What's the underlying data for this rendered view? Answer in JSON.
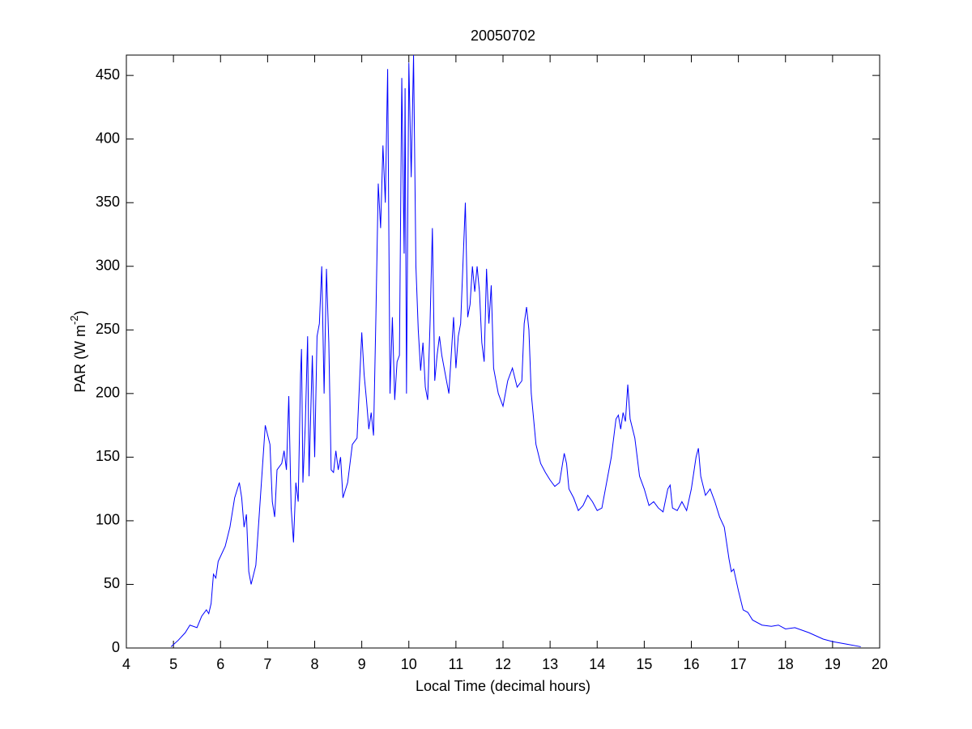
{
  "chart_data": {
    "type": "line",
    "title": "20050702",
    "xlabel": "Local Time (decimal hours)",
    "ylabel": [
      "PAR (W m",
      "-2",
      ")"
    ],
    "xlim": [
      4,
      20
    ],
    "xticks": [
      4,
      5,
      6,
      7,
      8,
      9,
      10,
      11,
      12,
      13,
      14,
      15,
      16,
      17,
      18,
      19,
      20
    ],
    "ylim": [
      0,
      466
    ],
    "yticks": [
      0,
      50,
      100,
      150,
      200,
      250,
      300,
      350,
      400,
      450
    ],
    "grid": false,
    "series": [
      {
        "color": "#0000ff",
        "x": [
          4.95,
          5.1,
          5.25,
          5.35,
          5.5,
          5.6,
          5.7,
          5.75,
          5.8,
          5.85,
          5.9,
          5.95,
          6.1,
          6.2,
          6.3,
          6.4,
          6.45,
          6.5,
          6.55,
          6.6,
          6.65,
          6.75,
          6.85,
          6.95,
          7.05,
          7.1,
          7.15,
          7.2,
          7.3,
          7.35,
          7.4,
          7.45,
          7.5,
          7.55,
          7.6,
          7.65,
          7.7,
          7.72,
          7.75,
          7.8,
          7.85,
          7.88,
          7.95,
          8.0,
          8.05,
          8.1,
          8.15,
          8.2,
          8.25,
          8.3,
          8.35,
          8.4,
          8.45,
          8.5,
          8.55,
          8.6,
          8.7,
          8.8,
          8.9,
          9.0,
          9.05,
          9.1,
          9.15,
          9.2,
          9.25,
          9.3,
          9.35,
          9.4,
          9.45,
          9.5,
          9.55,
          9.6,
          9.65,
          9.7,
          9.75,
          9.8,
          9.85,
          9.9,
          9.92,
          9.95,
          10.0,
          10.05,
          10.1,
          10.15,
          10.2,
          10.25,
          10.3,
          10.35,
          10.4,
          10.45,
          10.5,
          10.55,
          10.6,
          10.65,
          10.7,
          10.8,
          10.85,
          10.95,
          11.0,
          11.05,
          11.1,
          11.2,
          11.25,
          11.3,
          11.35,
          11.4,
          11.45,
          11.5,
          11.55,
          11.6,
          11.65,
          11.7,
          11.75,
          11.8,
          11.9,
          12.0,
          12.1,
          12.2,
          12.3,
          12.4,
          12.45,
          12.5,
          12.55,
          12.6,
          12.7,
          12.8,
          12.9,
          13.0,
          13.1,
          13.2,
          13.3,
          13.35,
          13.4,
          13.5,
          13.6,
          13.7,
          13.8,
          13.9,
          14.0,
          14.1,
          14.2,
          14.3,
          14.4,
          14.45,
          14.5,
          14.55,
          14.6,
          14.65,
          14.7,
          14.8,
          14.9,
          15.0,
          15.1,
          15.2,
          15.3,
          15.4,
          15.5,
          15.55,
          15.6,
          15.7,
          15.8,
          15.9,
          16.0,
          16.1,
          16.15,
          16.2,
          16.3,
          16.4,
          16.5,
          16.6,
          16.7,
          16.8,
          16.85,
          16.9,
          17.0,
          17.1,
          17.2,
          17.3,
          17.5,
          17.7,
          17.85,
          18.0,
          18.2,
          18.5,
          18.8,
          19.0,
          19.3,
          19.6
        ],
        "values": [
          1,
          6,
          12,
          18,
          16,
          25,
          30,
          27,
          35,
          58,
          55,
          68,
          80,
          95,
          118,
          130,
          118,
          95,
          105,
          60,
          50,
          65,
          120,
          175,
          160,
          115,
          103,
          140,
          145,
          155,
          140,
          198,
          110,
          83,
          130,
          115,
          215,
          235,
          130,
          175,
          245,
          135,
          230,
          150,
          245,
          255,
          300,
          200,
          298,
          240,
          140,
          138,
          155,
          140,
          150,
          118,
          130,
          160,
          165,
          248,
          215,
          195,
          172,
          185,
          167,
          260,
          365,
          330,
          395,
          350,
          455,
          200,
          260,
          195,
          225,
          230,
          448,
          310,
          440,
          200,
          460,
          370,
          466,
          300,
          250,
          218,
          240,
          205,
          195,
          255,
          330,
          210,
          230,
          245,
          230,
          210,
          200,
          260,
          220,
          245,
          255,
          350,
          260,
          270,
          300,
          280,
          300,
          280,
          240,
          225,
          298,
          255,
          285,
          220,
          200,
          190,
          210,
          220,
          205,
          210,
          255,
          268,
          250,
          200,
          160,
          145,
          138,
          132,
          127,
          130,
          153,
          145,
          125,
          118,
          108,
          112,
          120,
          115,
          108,
          110,
          130,
          150,
          180,
          183,
          172,
          185,
          178,
          207,
          180,
          165,
          135,
          125,
          112,
          115,
          110,
          107,
          125,
          128,
          110,
          108,
          115,
          108,
          125,
          150,
          157,
          135,
          120,
          125,
          115,
          103,
          95,
          70,
          60,
          62,
          45,
          30,
          28,
          22,
          18,
          17,
          18,
          15,
          16,
          12,
          7,
          5,
          3,
          1
        ]
      }
    ]
  }
}
